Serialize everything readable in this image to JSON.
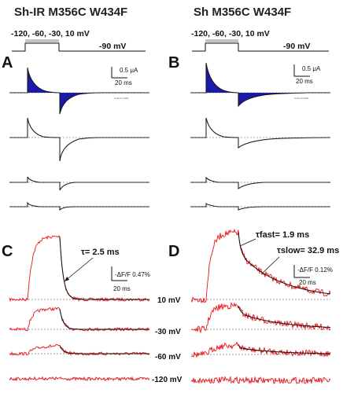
{
  "titles": {
    "left": "Sh-IR M356C W434F",
    "right": "Sh M356C W434F"
  },
  "protocol": {
    "step_label": "-120, -60, -30, 10 mV",
    "hold_label": "-90 mV"
  },
  "panels": {
    "A": "A",
    "B": "B",
    "C": "C",
    "D": "D"
  },
  "scalebars": {
    "A_current": "0.5 μA",
    "A_time": "20 ms",
    "B_current": "0.5 μA",
    "B_time": "20 ms",
    "C_fluor": "-ΔF/F 0.47%",
    "C_time": "20 ms",
    "D_fluor": "-ΔF/F 0.12%",
    "D_time": "20 ms"
  },
  "fits": {
    "C_tau": "τ= 2.5 ms",
    "D_tau_fast": "τfast= 1.9 ms",
    "D_tau_slow": "τslow= 32.9 ms"
  },
  "voltages": [
    "10 mV",
    "-30 mV",
    "-60 mV",
    "-120 mV"
  ],
  "colors": {
    "gating_fill": "#1a1aa8",
    "fluorescence": "#e8141a",
    "fit": "#111111"
  }
}
